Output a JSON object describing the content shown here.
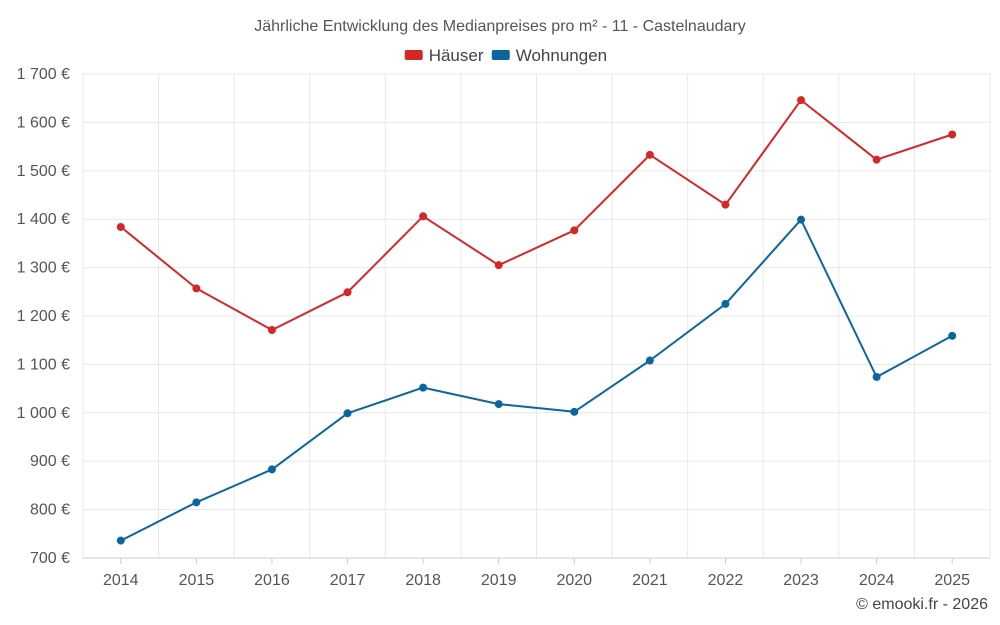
{
  "chart_data": {
    "type": "line",
    "title": "Jährliche Entwicklung des Medianpreises pro m² - 11 - Castelnaudary",
    "categories": [
      "2014",
      "2015",
      "2016",
      "2017",
      "2018",
      "2019",
      "2020",
      "2021",
      "2022",
      "2023",
      "2024",
      "2025"
    ],
    "series": [
      {
        "name": "Häuser",
        "color": "#d62728",
        "values": [
          1384,
          1257,
          1171,
          1249,
          1406,
          1305,
          1377,
          1533,
          1430,
          1646,
          1523,
          1575
        ]
      },
      {
        "name": "Wohnungen",
        "color": "#0b66a0",
        "values": [
          736,
          815,
          883,
          999,
          1052,
          1018,
          1002,
          1108,
          1225,
          1399,
          1074,
          1159
        ]
      }
    ],
    "ylim": [
      700,
      1700
    ],
    "yticks": [
      700,
      800,
      900,
      1000,
      1100,
      1200,
      1300,
      1400,
      1500,
      1600,
      1700
    ],
    "ytick_labels": [
      "700 €",
      "800 €",
      "900 €",
      "1 000 €",
      "1 100 €",
      "1 200 €",
      "1 300 €",
      "1 400 €",
      "1 500 €",
      "1 600 €",
      "1 700 €"
    ],
    "legend_position": "top-center",
    "grid": true
  },
  "credit": "© emooki.fr - 2026"
}
